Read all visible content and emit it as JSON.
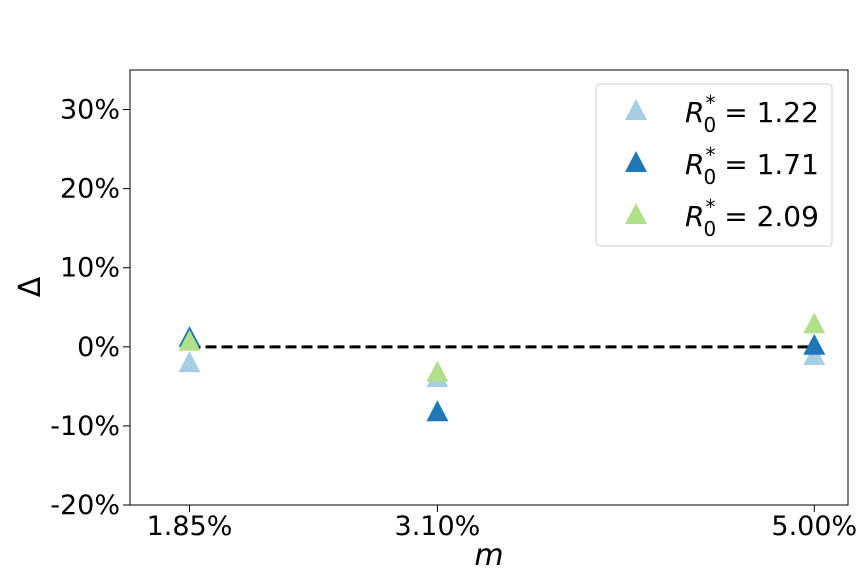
{
  "chart_data": {
    "type": "scatter",
    "title": "",
    "xlabel": "m",
    "ylabel": "Δ",
    "x_tick_labels": [
      "1.85%",
      "3.10%",
      "5.00%"
    ],
    "x": [
      1.85,
      3.1,
      5.0
    ],
    "xlim": [
      1.55,
      5.17
    ],
    "y_tick_labels": [
      "-20%",
      "-10%",
      "0%",
      "10%",
      "20%",
      "30%"
    ],
    "y_ticks": [
      -20,
      -10,
      0,
      10,
      20,
      30
    ],
    "ylim": [
      -20,
      35
    ],
    "reference_line": {
      "y": 0,
      "style": "dashed",
      "color": "#000000"
    },
    "grid": false,
    "legend_placement": "top-right",
    "series": [
      {
        "name": "R_0^* = 1.22",
        "legend_symbol": "R",
        "legend_sub": "0",
        "legend_sup": "*",
        "legend_value": "= 1.22",
        "color": "#a6cee3",
        "values": [
          -2.2,
          -4.1,
          -1.3
        ]
      },
      {
        "name": "R_0^* = 1.71",
        "legend_symbol": "R",
        "legend_sub": "0",
        "legend_sup": "*",
        "legend_value": "= 1.71",
        "color": "#1f78b4",
        "values": [
          1.0,
          -8.4,
          0.0
        ]
      },
      {
        "name": "R_0^* = 2.09",
        "legend_symbol": "R",
        "legend_sub": "0",
        "legend_sup": "*",
        "legend_value": "= 2.09",
        "color": "#b2df8a",
        "values": [
          0.5,
          -3.4,
          2.7
        ]
      }
    ]
  }
}
